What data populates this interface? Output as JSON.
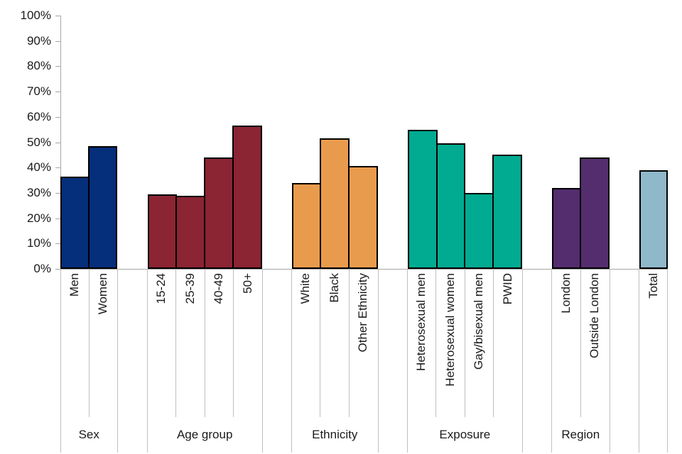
{
  "chart_data": {
    "type": "bar",
    "title": "",
    "ylabel": "",
    "unit": "%",
    "ylim": [
      0,
      100
    ],
    "ytick_step": 10,
    "grid": false,
    "legend": false,
    "ytick_labels": [
      "100%",
      "90%",
      "80%",
      "70%",
      "60%",
      "50%",
      "40%",
      "30%",
      "20%",
      "10%",
      "0%"
    ],
    "groups": [
      {
        "label": "Sex",
        "color": "#052e7b",
        "bars": [
          {
            "label": "Men",
            "value": 36.5
          },
          {
            "label": "Women",
            "value": 48.5
          }
        ]
      },
      {
        "label": "Age group",
        "color": "#8b2433",
        "bars": [
          {
            "label": "15-24",
            "value": 29.5
          },
          {
            "label": "25-39",
            "value": 29
          },
          {
            "label": "40-49",
            "value": 44
          },
          {
            "label": "50+",
            "value": 56.5
          }
        ]
      },
      {
        "label": "Ethnicity",
        "color": "#e99b4d",
        "bars": [
          {
            "label": "White",
            "value": 34
          },
          {
            "label": "Black",
            "value": 51.5
          },
          {
            "label": "Other Ethnicity",
            "value": 40.5
          }
        ]
      },
      {
        "label": "Exposure",
        "color": "#00ab91",
        "bars": [
          {
            "label": "Heterosexual men",
            "value": 55
          },
          {
            "label": "Heterosexual women",
            "value": 49.5
          },
          {
            "label": "Gay/bisexual men",
            "value": 30
          },
          {
            "label": "PWID",
            "value": 45
          }
        ]
      },
      {
        "label": "Region",
        "color": "#542d6e",
        "bars": [
          {
            "label": "London",
            "value": 32
          },
          {
            "label": "Outside London",
            "value": 44
          }
        ]
      },
      {
        "label": "",
        "color": "#8fb8ca",
        "bars": [
          {
            "label": "Total",
            "value": 39
          }
        ]
      }
    ],
    "colors": {
      "bar_border": "#000000",
      "axis_line": "#a6a6a6",
      "separator_line": "#bfbfbf"
    }
  }
}
